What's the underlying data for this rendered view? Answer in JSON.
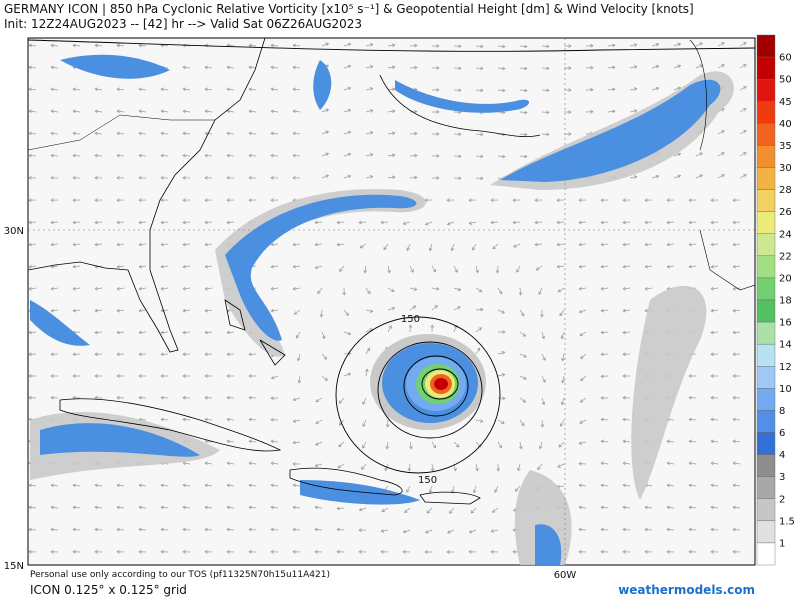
{
  "header": {
    "title": "GERMANY ICON | 850 hPa Cyclonic Relative Vorticity [x10⁵ s⁻¹] & Geopotential Height [dm] & Wind Velocity [knots]",
    "subtitle": "Init: 12Z24AUG2023 -- [42] hr --> Valid Sat 06Z26AUG2023"
  },
  "map": {
    "lat_labels": [
      "30N",
      "15N"
    ],
    "lon_labels": [
      "60W"
    ],
    "contour_labels": [
      "150",
      "150"
    ]
  },
  "colorbar": {
    "levels": [
      60,
      50,
      45,
      40,
      35,
      30,
      28,
      26,
      24,
      22,
      20,
      18,
      16,
      14,
      12,
      10,
      8,
      6,
      4,
      3,
      2,
      1.5,
      1
    ],
    "colors": [
      "#a00000",
      "#c40000",
      "#e01510",
      "#f03a10",
      "#f06420",
      "#f29030",
      "#f2b244",
      "#f2d062",
      "#ecea7a",
      "#cce890",
      "#a2df82",
      "#72d070",
      "#54c064",
      "#a8e2a8",
      "#b6e2f2",
      "#a0c8f2",
      "#74aaf0",
      "#5290e8",
      "#3270d8",
      "#8e8e8e",
      "#a8a8a8",
      "#c6c6c6",
      "#e0e0e0",
      "#ffffff"
    ]
  },
  "footer": {
    "tos": "Personal use only according to our TOS (pf11325N70h15u11A421)",
    "grid": "ICON 0.125° x 0.125° grid",
    "site": "weathermodels.com"
  }
}
